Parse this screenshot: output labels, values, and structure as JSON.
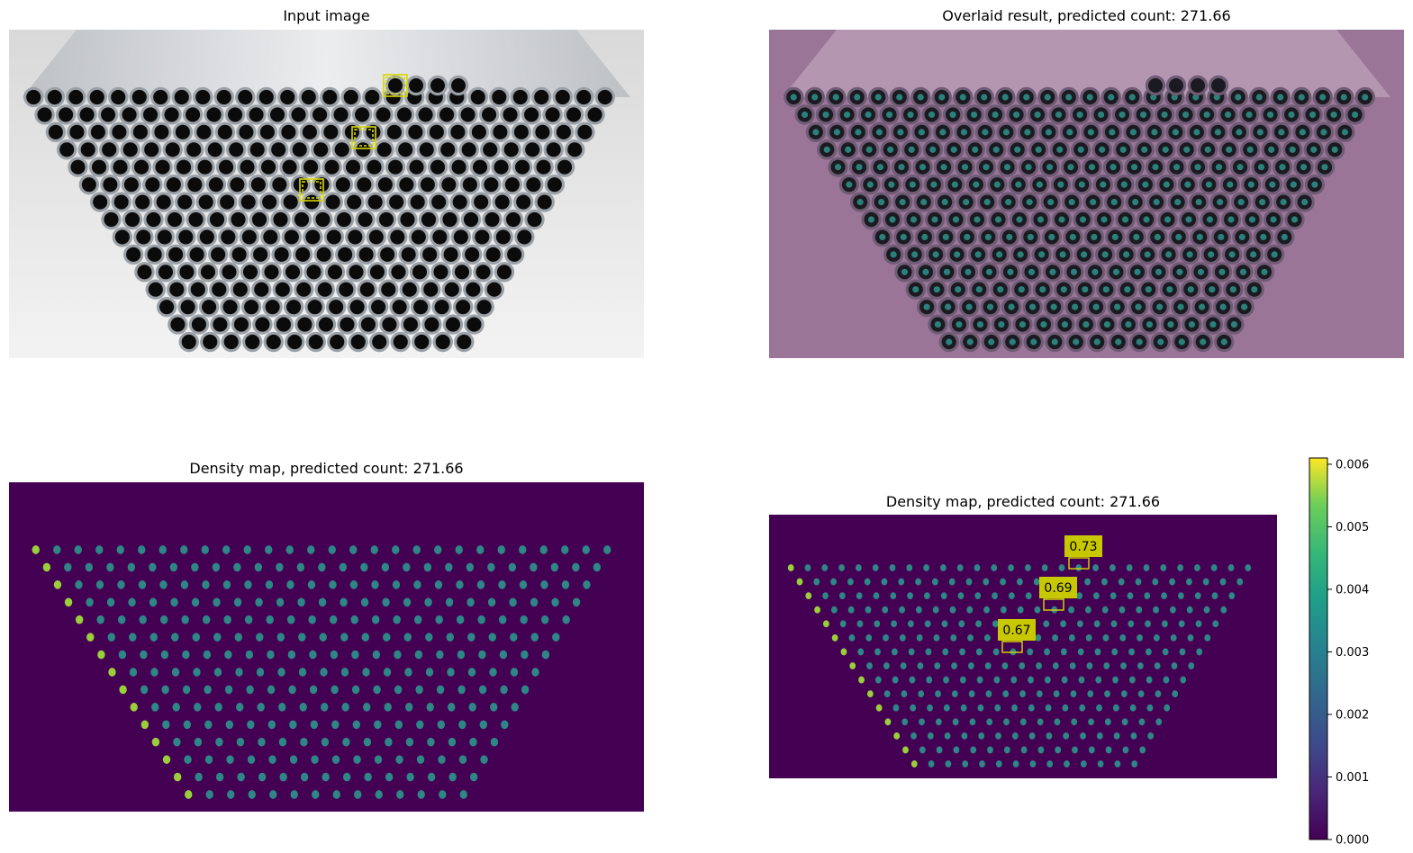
{
  "panels": {
    "input": {
      "title": "Input image"
    },
    "overlay": {
      "title": "Overlaid result, predicted count: 271.66"
    },
    "density": {
      "title": "Density map, predicted count: 271.66"
    },
    "density_boxes": {
      "title": "Density map, predicted count: 271.66",
      "box_scores": [
        "0.73",
        "0.69",
        "0.67"
      ]
    }
  },
  "colors": {
    "tube_face": "#9aa0a6",
    "tube_hole": "#0b0b0b",
    "background_light": "#e6e6e6",
    "overlay_tint": "#8a5a86",
    "density_background": "#440154",
    "density_peak": "#2a9d8f",
    "density_peak_bright": "#9fda3a",
    "box_yellow": "#d8d800"
  },
  "chart_data": [
    {
      "type": "heatmap",
      "title": "Density map, predicted count: 271.66",
      "predicted_count": 271.66,
      "colormap": "viridis",
      "colorbar": {
        "range": [
          0,
          0.006
        ],
        "ticks": [
          "0.000",
          "0.001",
          "0.002",
          "0.003",
          "0.004",
          "0.005",
          "0.006"
        ],
        "max": 0.0061
      }
    }
  ]
}
